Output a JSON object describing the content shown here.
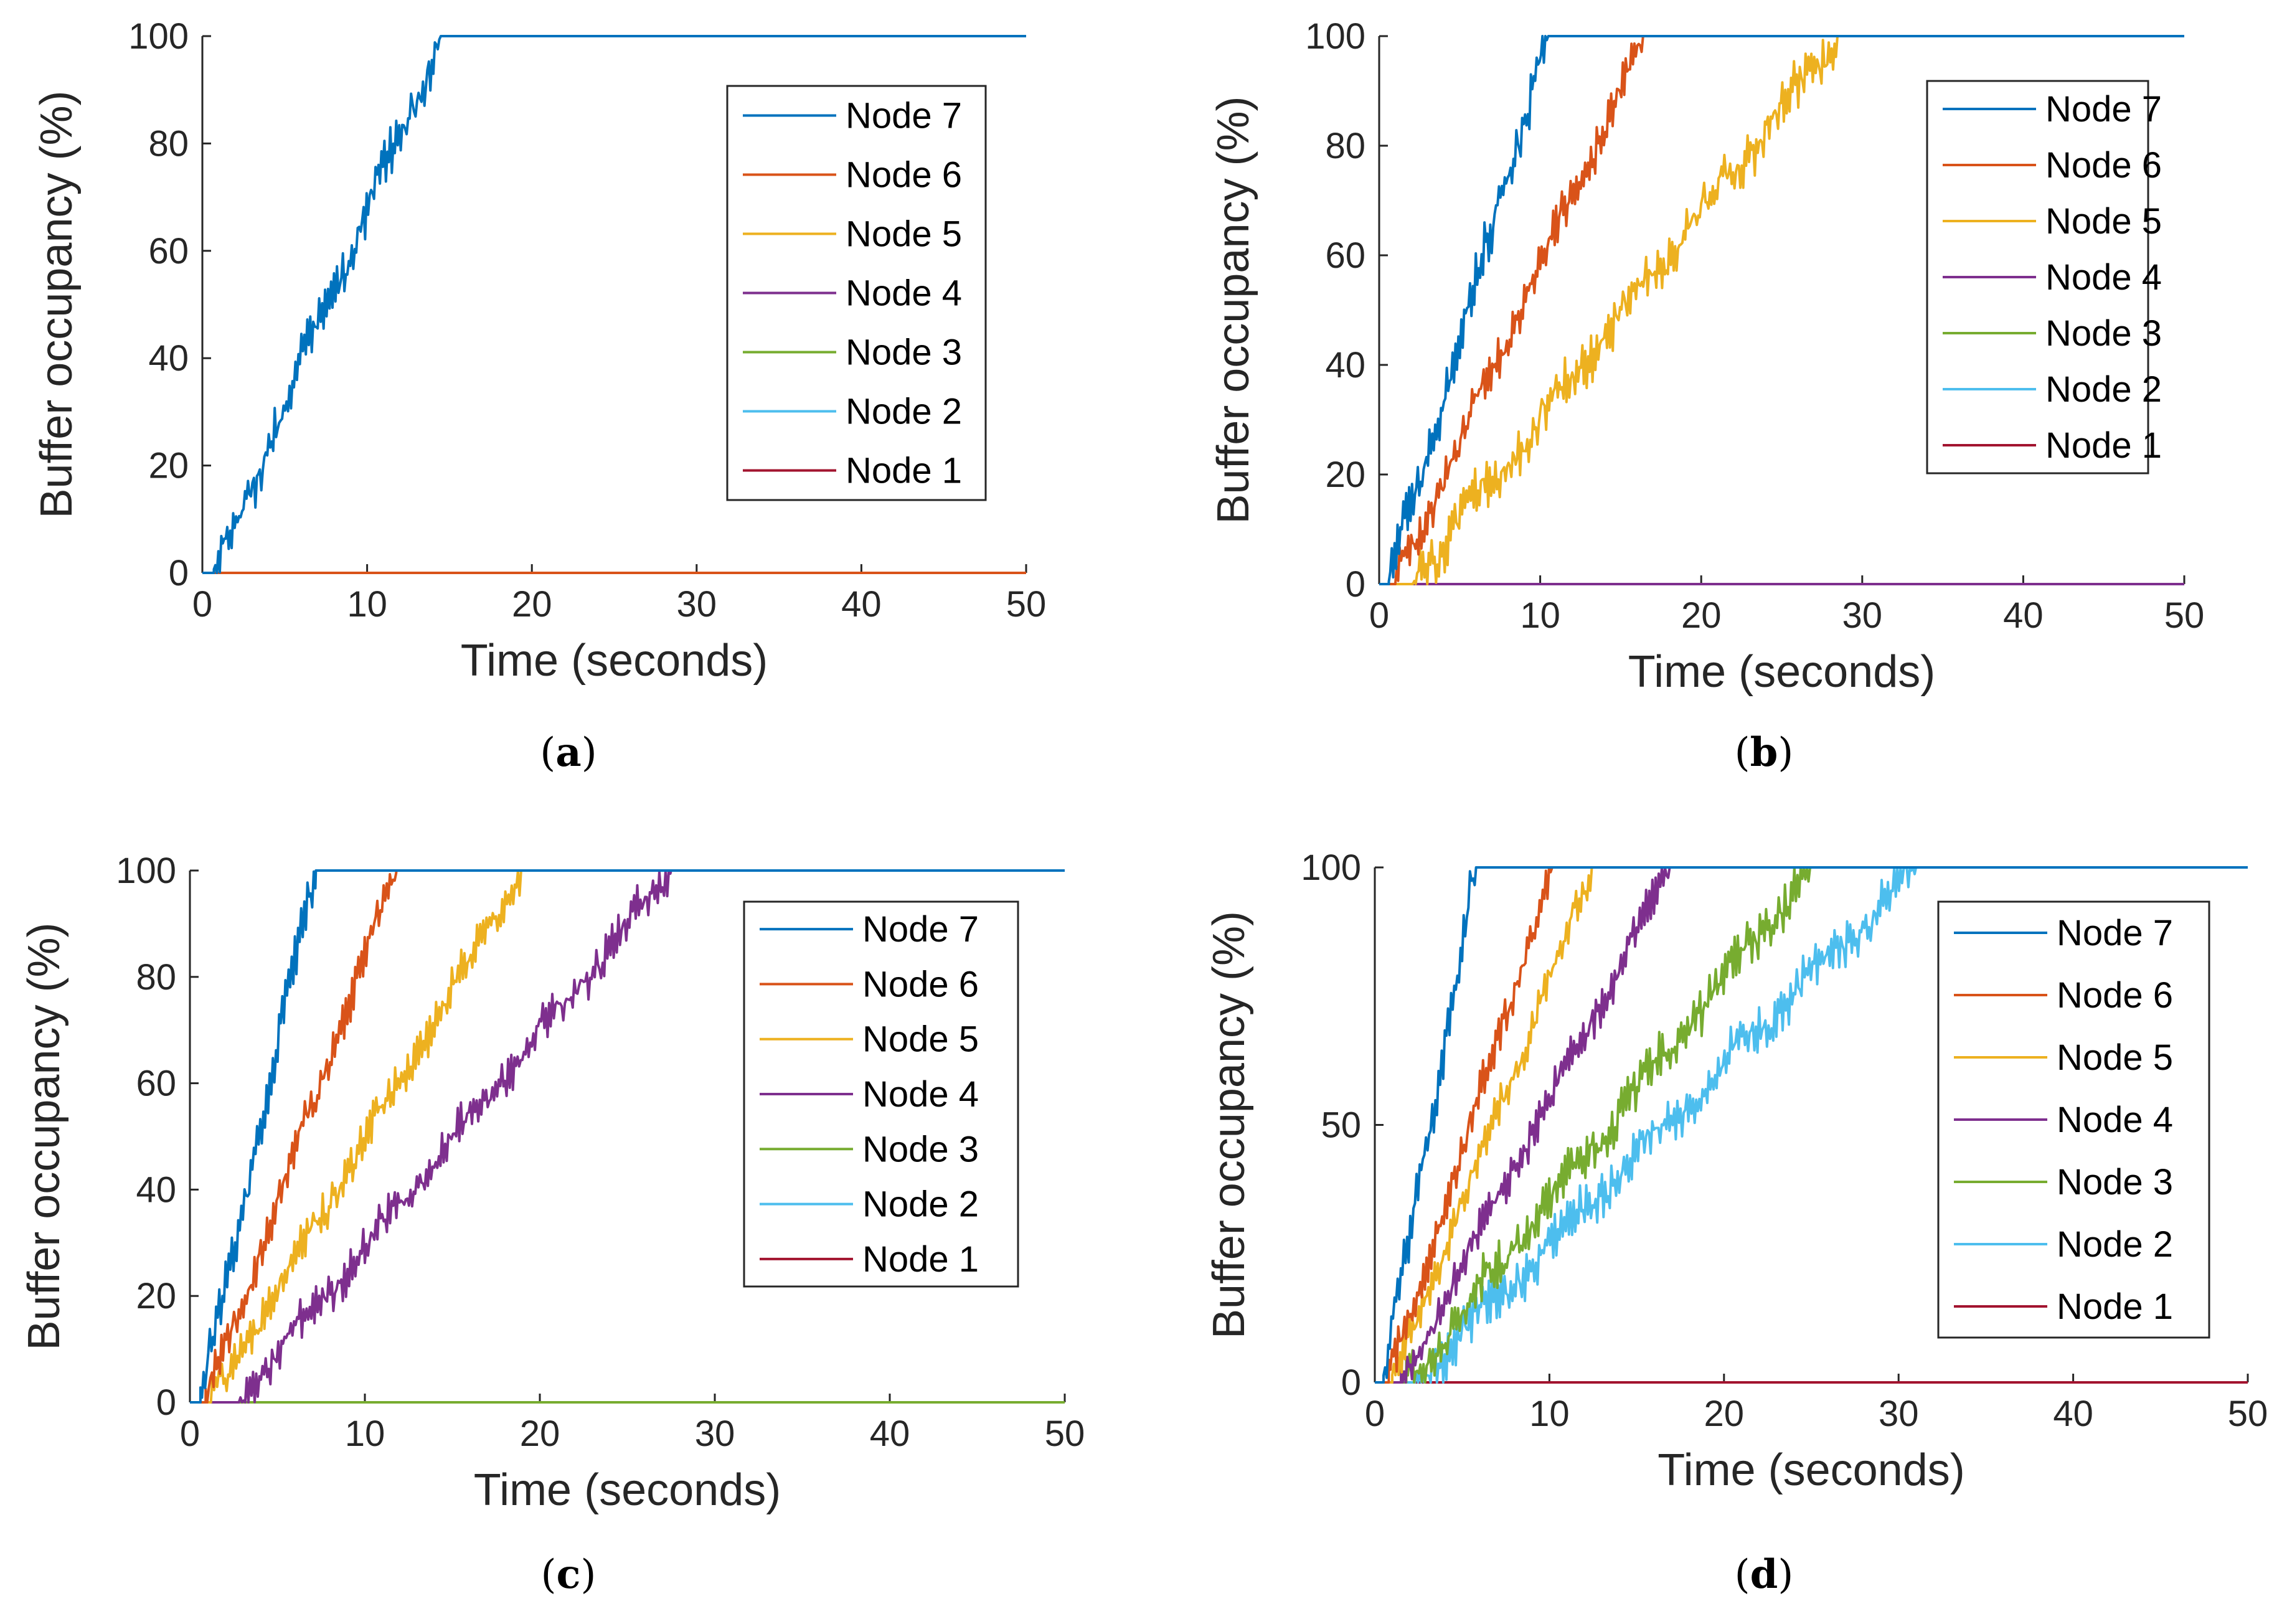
{
  "figure": {
    "colors": {
      "Node 7": "#0072BD",
      "Node 6": "#D95319",
      "Node 5": "#EDB120",
      "Node 4": "#7E2F8E",
      "Node 3": "#77AC30",
      "Node 2": "#4DBEEE",
      "Node 1": "#A2142F"
    }
  },
  "chart_data": [
    {
      "panel": "(a)",
      "panel_letter": "a",
      "type": "line",
      "title": "",
      "xlabel": "Time (seconds)",
      "ylabel": "Buffer occupancy (%)",
      "xlim": [
        0,
        50
      ],
      "ylim": [
        0,
        100
      ],
      "xticks": [
        0,
        10,
        20,
        30,
        40,
        50
      ],
      "yticks": [
        0,
        20,
        40,
        60,
        80,
        100
      ],
      "legend_position": "top-right",
      "legend": [
        "Node 7",
        "Node 6",
        "Node 5",
        "Node 4",
        "Node 3",
        "Node 2",
        "Node 1"
      ],
      "series": [
        {
          "name": "Node 7",
          "start": 0.7,
          "full": 14.5,
          "amp": 3
        },
        {
          "name": "Node 6",
          "start": null,
          "full": null,
          "amp": 0
        },
        {
          "name": "Node 5",
          "start": null,
          "full": null,
          "amp": 0
        },
        {
          "name": "Node 4",
          "start": null,
          "full": null,
          "amp": 0
        },
        {
          "name": "Node 3",
          "start": null,
          "full": null,
          "amp": 0
        },
        {
          "name": "Node 2",
          "start": null,
          "full": null,
          "amp": 0
        },
        {
          "name": "Node 1",
          "start": null,
          "full": null,
          "amp": 0
        }
      ]
    },
    {
      "panel": "(b)",
      "panel_letter": "b",
      "type": "line",
      "title": "",
      "xlabel": "Time (seconds)",
      "ylabel": "Buffer occupancy (%)",
      "xlim": [
        0,
        50
      ],
      "ylim": [
        0,
        100
      ],
      "xticks": [
        0,
        10,
        20,
        30,
        40,
        50
      ],
      "yticks": [
        0,
        20,
        40,
        60,
        80,
        100
      ],
      "legend_position": "top-right",
      "legend": [
        "Node 7",
        "Node 6",
        "Node 5",
        "Node 4",
        "Node 3",
        "Node 2",
        "Node 1"
      ],
      "series": [
        {
          "name": "Node 7",
          "start": 0.6,
          "full": 10.5,
          "amp": 3
        },
        {
          "name": "Node 6",
          "start": 1.0,
          "full": 16.5,
          "amp": 2.5
        },
        {
          "name": "Node 5",
          "start": 2.0,
          "full": 28.5,
          "amp": 3
        },
        {
          "name": "Node 4",
          "start": null,
          "full": null,
          "amp": 0
        },
        {
          "name": "Node 3",
          "start": null,
          "full": null,
          "amp": 0
        },
        {
          "name": "Node 2",
          "start": null,
          "full": null,
          "amp": 0
        },
        {
          "name": "Node 1",
          "start": null,
          "full": null,
          "amp": 0
        }
      ]
    },
    {
      "panel": "(c)",
      "panel_letter": "c",
      "type": "line",
      "title": "",
      "xlabel": "Time (seconds)",
      "ylabel": "Buffer occupancy (%)",
      "xlim": [
        0,
        50
      ],
      "ylim": [
        0,
        100
      ],
      "xticks": [
        0,
        10,
        20,
        30,
        40,
        50
      ],
      "yticks": [
        0,
        20,
        40,
        60,
        80,
        100
      ],
      "legend_position": "right",
      "legend": [
        "Node 7",
        "Node 6",
        "Node 5",
        "Node 4",
        "Node 3",
        "Node 2",
        "Node 1"
      ],
      "series": [
        {
          "name": "Node 7",
          "start": 0.6,
          "full": 7.2,
          "amp": 3
        },
        {
          "name": "Node 6",
          "start": 0.9,
          "full": 11.8,
          "amp": 2.5
        },
        {
          "name": "Node 5",
          "start": 1.2,
          "full": 19.0,
          "amp": 2.5
        },
        {
          "name": "Node 4",
          "start": 2.8,
          "full": 27.5,
          "amp": 2.5
        },
        {
          "name": "Node 3",
          "start": null,
          "full": null,
          "amp": 0
        },
        {
          "name": "Node 2",
          "start": null,
          "full": null,
          "amp": 0
        },
        {
          "name": "Node 1",
          "start": null,
          "full": null,
          "amp": 0
        }
      ]
    },
    {
      "panel": "(d)",
      "panel_letter": "d",
      "type": "line",
      "title": "",
      "xlabel": "Time (seconds)",
      "ylabel": "Buffer occupancy (%)",
      "xlim": [
        0,
        50
      ],
      "ylim": [
        0,
        100
      ],
      "xticks": [
        0,
        10,
        20,
        30,
        40,
        50
      ],
      "yticks": [
        0,
        50,
        100
      ],
      "legend_position": "right",
      "legend": [
        "Node 7",
        "Node 6",
        "Node 5",
        "Node 4",
        "Node 3",
        "Node 2",
        "Node 1"
      ],
      "series": [
        {
          "name": "Node 7",
          "start": 0.5,
          "full": 5.8,
          "amp": 3
        },
        {
          "name": "Node 6",
          "start": 0.8,
          "full": 10.2,
          "amp": 2.5
        },
        {
          "name": "Node 5",
          "start": 1.0,
          "full": 12.5,
          "amp": 2.5
        },
        {
          "name": "Node 4",
          "start": 1.5,
          "full": 17.0,
          "amp": 2.5
        },
        {
          "name": "Node 3",
          "start": 1.8,
          "full": 25.0,
          "amp": 3
        },
        {
          "name": "Node 2",
          "start": 2.3,
          "full": 31.0,
          "amp": 3
        },
        {
          "name": "Node 1",
          "start": null,
          "full": null,
          "amp": 0
        }
      ]
    }
  ]
}
